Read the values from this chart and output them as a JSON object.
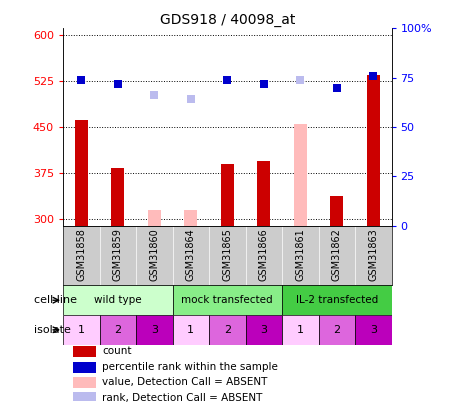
{
  "title": "GDS918 / 40098_at",
  "samples": [
    "GSM31858",
    "GSM31859",
    "GSM31860",
    "GSM31864",
    "GSM31865",
    "GSM31866",
    "GSM31861",
    "GSM31862",
    "GSM31863"
  ],
  "bar_values": [
    462,
    383,
    null,
    null,
    390,
    395,
    null,
    338,
    535
  ],
  "bar_absent_values": [
    null,
    null,
    315,
    315,
    null,
    null,
    455,
    null,
    null
  ],
  "bar_color": "#cc0000",
  "bar_absent_color": "#ffbbbb",
  "percentile_values": [
    74,
    72,
    null,
    null,
    74,
    72,
    74,
    70,
    76
  ],
  "percentile_absent_values": [
    null,
    null,
    66,
    64,
    null,
    null,
    74,
    null,
    null
  ],
  "percentile_color": "#0000cc",
  "percentile_absent_color": "#bbbbee",
  "ylim_left": [
    290,
    610
  ],
  "ylim_right": [
    0,
    100
  ],
  "yticks_left": [
    300,
    375,
    450,
    525,
    600
  ],
  "yticks_right": [
    0,
    25,
    50,
    75,
    100
  ],
  "ytick_labels_right": [
    "0",
    "25",
    "50",
    "75",
    "100%"
  ],
  "cell_line_groups": [
    {
      "label": "wild type",
      "color": "#ccffcc",
      "start": 0,
      "end": 3
    },
    {
      "label": "mock transfected",
      "color": "#88ee88",
      "start": 3,
      "end": 6
    },
    {
      "label": "IL-2 transfected",
      "color": "#44cc44",
      "start": 6,
      "end": 9
    }
  ],
  "isolate_values": [
    1,
    2,
    3,
    1,
    2,
    3,
    1,
    2,
    3
  ],
  "isolate_colors": [
    "#ffccff",
    "#dd66dd",
    "#bb00bb",
    "#ffccff",
    "#dd66dd",
    "#bb00bb",
    "#ffccff",
    "#dd66dd",
    "#bb00bb"
  ],
  "cell_line_row_label": "cell line",
  "isolate_row_label": "isolate",
  "legend_items": [
    {
      "label": "count",
      "color": "#cc0000"
    },
    {
      "label": "percentile rank within the sample",
      "color": "#0000cc"
    },
    {
      "label": "value, Detection Call = ABSENT",
      "color": "#ffbbbb"
    },
    {
      "label": "rank, Detection Call = ABSENT",
      "color": "#bbbbee"
    }
  ],
  "bar_width": 0.35,
  "marker_size": 6,
  "sample_bg_color": "#cccccc",
  "spine_color": "#888888"
}
